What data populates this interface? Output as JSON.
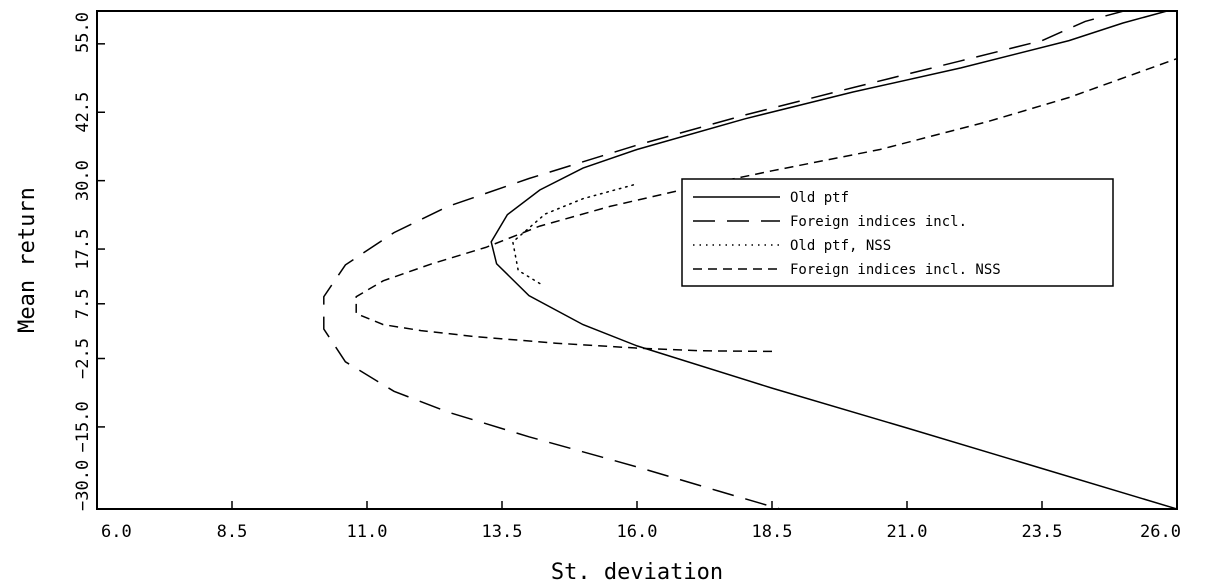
{
  "chart_data": {
    "type": "line",
    "title": "",
    "xlabel": "St. deviation",
    "ylabel": "Mean return",
    "xlim": [
      6.0,
      26.0
    ],
    "ylim": [
      -30.0,
      61.0
    ],
    "x_ticks": [
      "6.0",
      "8.5",
      "11.0",
      "13.5",
      "16.0",
      "18.5",
      "21.0",
      "23.5",
      "26.0"
    ],
    "y_ticks": [
      "-30.0",
      "-15.0",
      "-2.5",
      "7.5",
      "17.5",
      "30.0",
      "42.5",
      "55.0"
    ],
    "y_tick_values": [
      -30.0,
      -15.0,
      -2.5,
      7.5,
      17.5,
      30.0,
      42.5,
      55.0
    ],
    "grid": false,
    "legend_position": "right",
    "series": [
      {
        "name": "Old ptf",
        "style": "solid",
        "points": [
          [
            26.0,
            -30.0
          ],
          [
            23.5,
            -22.6
          ],
          [
            21.0,
            -15.2
          ],
          [
            18.5,
            -7.9
          ],
          [
            16.0,
            -0.2
          ],
          [
            15.0,
            3.7
          ],
          [
            14.0,
            9.0
          ],
          [
            13.4,
            14.8
          ],
          [
            13.3,
            18.8
          ],
          [
            13.6,
            23.8
          ],
          [
            14.2,
            28.3
          ],
          [
            15.0,
            32.3
          ],
          [
            16.0,
            35.7
          ],
          [
            18.0,
            41.3
          ],
          [
            20.0,
            46.2
          ],
          [
            22.0,
            50.6
          ],
          [
            24.0,
            55.6
          ],
          [
            25.0,
            58.8
          ],
          [
            26.0,
            61.5
          ]
        ]
      },
      {
        "name": "Foreign indices incl.",
        "style": "long-dash",
        "points": [
          [
            19.0,
            -31.0
          ],
          [
            17.5,
            -26.7
          ],
          [
            16.0,
            -22.3
          ],
          [
            14.0,
            -16.8
          ],
          [
            12.5,
            -12.3
          ],
          [
            11.5,
            -8.5
          ],
          [
            10.6,
            -3.1
          ],
          [
            10.2,
            2.9
          ],
          [
            10.2,
            8.8
          ],
          [
            10.6,
            14.6
          ],
          [
            11.5,
            20.5
          ],
          [
            12.5,
            25.3
          ],
          [
            14.0,
            30.4
          ],
          [
            16.0,
            36.5
          ],
          [
            18.0,
            42.0
          ],
          [
            20.0,
            47.0
          ],
          [
            22.0,
            51.9
          ],
          [
            23.5,
            55.6
          ],
          [
            24.3,
            59.1
          ],
          [
            25.2,
            61.5
          ]
        ]
      },
      {
        "name": "Old ptf, NSS",
        "style": "dotted",
        "points": [
          [
            14.2,
            11.2
          ],
          [
            13.8,
            13.6
          ],
          [
            13.7,
            18.8
          ],
          [
            14.3,
            23.9
          ],
          [
            15.0,
            26.7
          ],
          [
            16.0,
            29.4
          ]
        ]
      },
      {
        "name": "Foreign indices incl. NSS",
        "style": "short-dash",
        "points": [
          [
            18.5,
            -1.2
          ],
          [
            17.2,
            -1.1
          ],
          [
            16.0,
            -0.6
          ],
          [
            14.5,
            0.3
          ],
          [
            13.0,
            1.5
          ],
          [
            12.0,
            2.6
          ],
          [
            11.3,
            3.7
          ],
          [
            10.8,
            5.7
          ],
          [
            10.8,
            8.8
          ],
          [
            11.3,
            11.7
          ],
          [
            12.2,
            14.8
          ],
          [
            13.2,
            17.8
          ],
          [
            14.2,
            21.7
          ],
          [
            15.5,
            25.3
          ],
          [
            17.0,
            28.7
          ],
          [
            18.5,
            31.8
          ],
          [
            20.5,
            35.7
          ],
          [
            22.5,
            40.8
          ],
          [
            24.0,
            45.2
          ],
          [
            26.0,
            52.3
          ]
        ]
      }
    ]
  }
}
